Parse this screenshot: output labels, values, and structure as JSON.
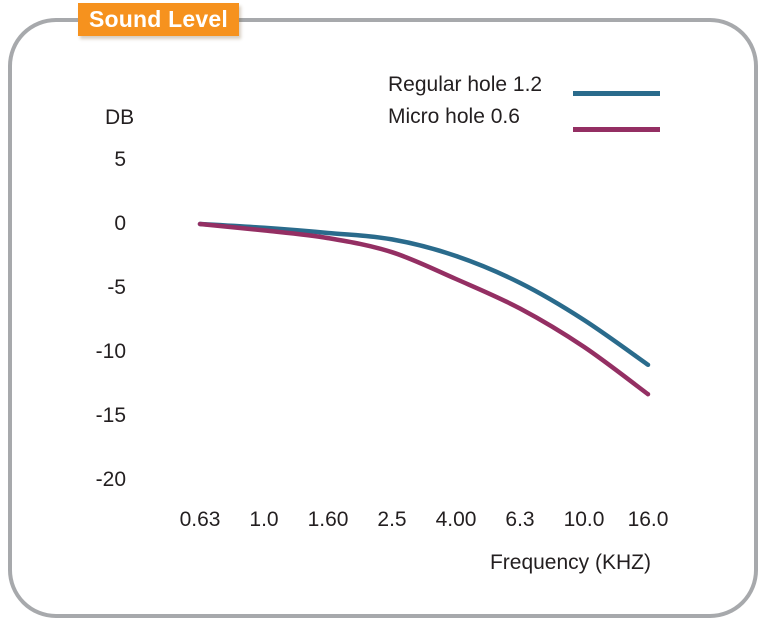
{
  "title": {
    "label": "Sound Level",
    "badge_color": "#F6921E",
    "text_color": "#FFFFFF"
  },
  "frame": {
    "border_color": "#A7A9AC"
  },
  "colors": {
    "regular_hole": "#2A6B8C",
    "micro_hole": "#942F63",
    "text": "#231F20"
  },
  "legend": [
    {
      "label": "Regular hole 1.2",
      "color": "#2A6B8C"
    },
    {
      "label": "Micro hole 0.6",
      "color": "#942F63"
    }
  ],
  "chart_data": {
    "type": "line",
    "title": "Sound Level",
    "xlabel": "Frequency (KHZ)",
    "ylabel": "DB",
    "x": [
      0.63,
      1.0,
      1.6,
      2.5,
      4.0,
      6.3,
      10.0,
      16.0
    ],
    "x_tick_labels": [
      "0.63",
      "1.0",
      "1.60",
      "2.5",
      "4.00",
      "6.3",
      "10.0",
      "16.0"
    ],
    "x_scale": "log-equal-spacing",
    "y_ticks": [
      5,
      0,
      -5,
      -10,
      -15,
      -20
    ],
    "ylim": [
      -20,
      5
    ],
    "grid": false,
    "legend_position": "top-right",
    "series": [
      {
        "name": "Regular hole 1.2",
        "color": "#2A6B8C",
        "values": [
          0,
          -0.3,
          -0.7,
          -1.2,
          -2.5,
          -4.6,
          -7.5,
          -11.0
        ]
      },
      {
        "name": "Micro hole 0.6",
        "color": "#942F63",
        "values": [
          0,
          -0.5,
          -1.1,
          -2.2,
          -4.3,
          -6.6,
          -9.6,
          -13.3
        ]
      }
    ]
  }
}
